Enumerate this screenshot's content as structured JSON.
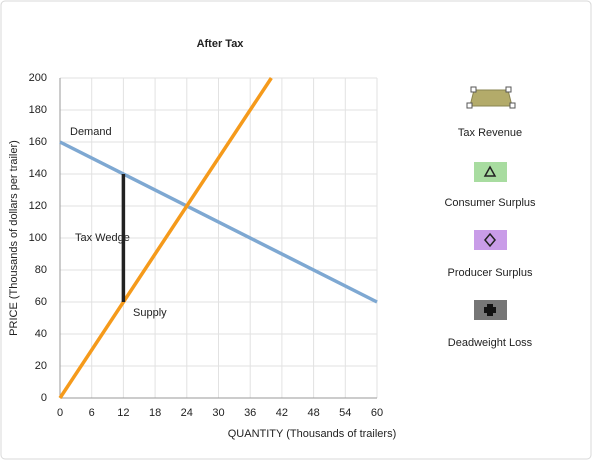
{
  "chart_data": {
    "type": "line",
    "title": "After Tax",
    "x_label": "QUANTITY (Thousands of trailers)",
    "y_label": "PRICE (Thousands of dollars per trailer)",
    "series": [
      {
        "name": "Demand",
        "color": "#7ea8d2",
        "x": [
          0,
          60
        ],
        "values": [
          160,
          60
        ]
      },
      {
        "name": "Supply",
        "color": "#f59a1b",
        "x": [
          0,
          40
        ],
        "values": [
          0,
          200
        ]
      }
    ],
    "tax_wedge": {
      "label": "Tax Wedge",
      "x": 12,
      "values": [
        60,
        140
      ],
      "color": "#222222"
    },
    "xlim": [
      0,
      60
    ],
    "xticks": [
      0,
      6,
      12,
      18,
      24,
      30,
      36,
      42,
      48,
      54,
      60
    ],
    "ylim": [
      0,
      200
    ],
    "yticks": [
      0,
      20,
      40,
      60,
      80,
      100,
      120,
      140,
      160,
      180,
      200
    ],
    "grid": true
  },
  "palette": {
    "items": [
      "Tax Revenue",
      "Consumer Surplus",
      "Producer Surplus",
      "Deadweight Loss"
    ]
  }
}
